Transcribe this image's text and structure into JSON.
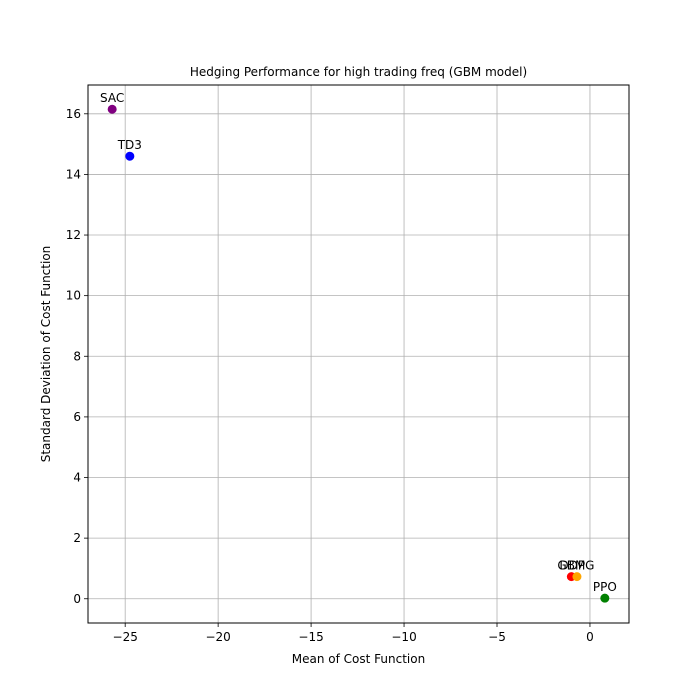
{
  "chart_data": {
    "type": "scatter",
    "title": "Hedging Performance for high trading freq (GBM model)",
    "xlabel": "Mean of Cost Function",
    "ylabel": "Standard Deviation of Cost Function",
    "xlim": [
      -27.0,
      2.1
    ],
    "ylim": [
      -0.8,
      16.95
    ],
    "xticks": [
      -25,
      -20,
      -15,
      -10,
      -5,
      0
    ],
    "xtick_labels": [
      "−25",
      "−20",
      "−15",
      "−10",
      "−5",
      "0"
    ],
    "yticks": [
      0,
      2,
      4,
      6,
      8,
      10,
      12,
      14,
      16
    ],
    "ytick_labels": [
      "0",
      "2",
      "4",
      "6",
      "8",
      "10",
      "12",
      "14",
      "16"
    ],
    "grid": true,
    "points": [
      {
        "label": "SAC",
        "x": -25.7,
        "y": 16.15,
        "color": "#800080"
      },
      {
        "label": "TD3",
        "x": -24.75,
        "y": 14.6,
        "color": "#0000ff"
      },
      {
        "label": "GBM",
        "x": -1.0,
        "y": 0.73,
        "color": "#ff0000"
      },
      {
        "label": "DDPG",
        "x": -0.7,
        "y": 0.73,
        "color": "#ffa500"
      },
      {
        "label": "PPO",
        "x": 0.8,
        "y": 0.02,
        "color": "#008000"
      }
    ]
  }
}
